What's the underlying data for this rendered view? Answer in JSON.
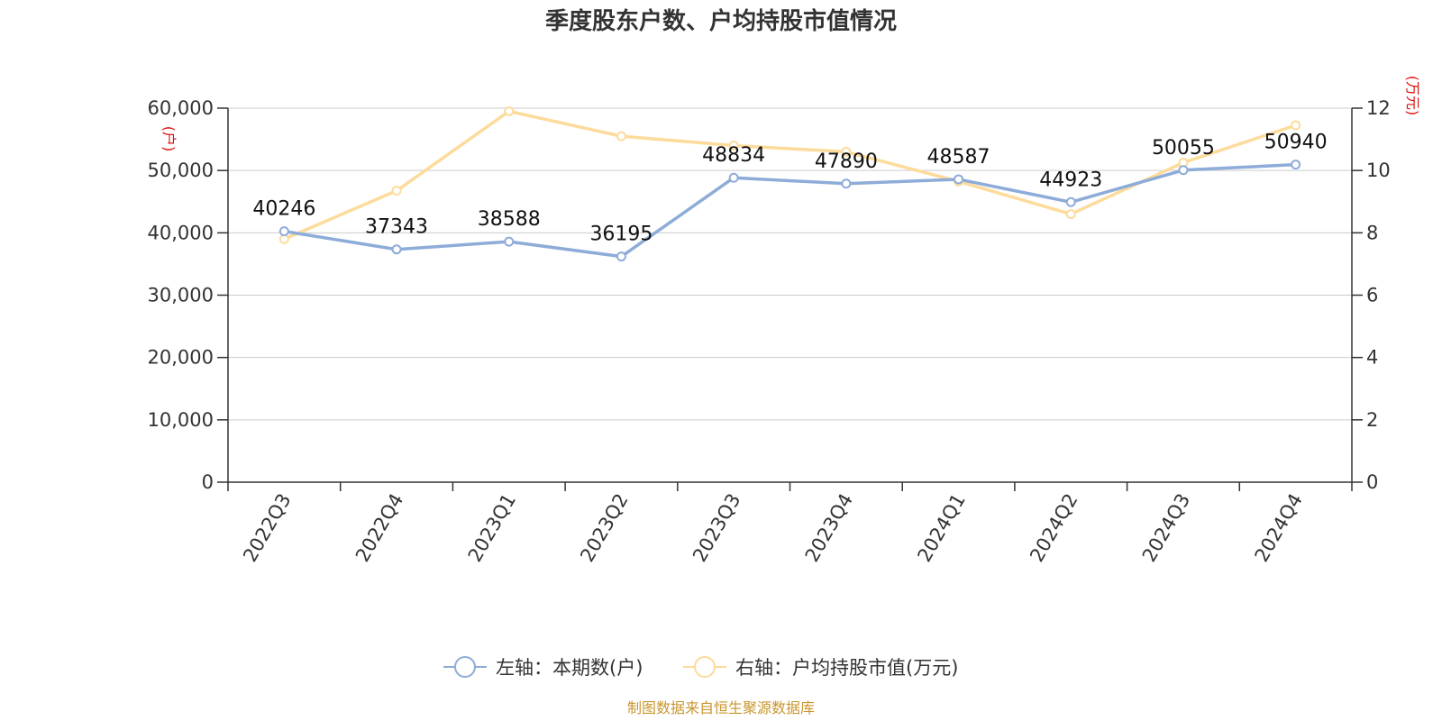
{
  "chart_data": {
    "type": "line",
    "title": "季度股东户数、户均持股市值情况",
    "categories": [
      "2022Q3",
      "2022Q4",
      "2023Q1",
      "2023Q2",
      "2023Q3",
      "2023Q4",
      "2024Q1",
      "2024Q2",
      "2024Q3",
      "2024Q4"
    ],
    "left_axis": {
      "unit": "(户)",
      "ylim": [
        0,
        60000
      ],
      "ticks": [
        0,
        10000,
        20000,
        30000,
        40000,
        50000,
        60000
      ],
      "tick_labels": [
        "0",
        "10,000",
        "20,000",
        "30,000",
        "40,000",
        "50,000",
        "60,000"
      ]
    },
    "right_axis": {
      "unit": "(万元)",
      "ylim": [
        0,
        12
      ],
      "ticks": [
        0,
        2,
        4,
        6,
        8,
        10,
        12
      ],
      "tick_labels": [
        "0",
        "2",
        "4",
        "6",
        "8",
        "10",
        "12"
      ]
    },
    "series": [
      {
        "name": "左轴：本期数(户)",
        "axis": "left",
        "color": "#8eacd8",
        "values": [
          40246,
          37343,
          38588,
          36195,
          48834,
          47890,
          48587,
          44923,
          50055,
          50940
        ],
        "labels": [
          "40246",
          "37343",
          "38588",
          "36195",
          "48834",
          "47890",
          "48587",
          "44923",
          "50055",
          "50940"
        ]
      },
      {
        "name": "右轴：户均持股市值(万元)",
        "axis": "right",
        "color": "#fddb9b",
        "values": [
          7.8,
          9.35,
          11.9,
          11.1,
          10.8,
          10.6,
          9.65,
          8.6,
          10.25,
          11.45
        ]
      }
    ],
    "grid": true,
    "legend_position": "bottom",
    "source": "制图数据来自恒生聚源数据库"
  }
}
